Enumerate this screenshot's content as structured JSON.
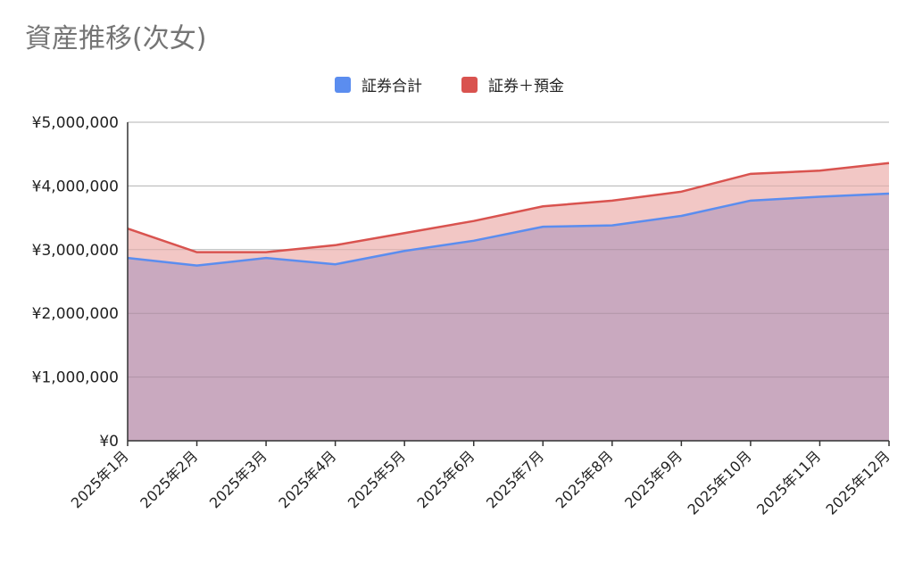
{
  "title": "資産推移(次女)",
  "legend": {
    "series0": "証券合計",
    "series1": "証券＋預金"
  },
  "colors": {
    "series0": "#5b8def",
    "series1": "#d9534f",
    "fill0": "#c9a9bf",
    "fill1": "#f2c7c5"
  },
  "chart_data": {
    "type": "area",
    "title": "資産推移(次女)",
    "xlabel": "",
    "ylabel": "",
    "ylim": [
      0,
      5000000
    ],
    "yticks": [
      0,
      1000000,
      2000000,
      3000000,
      4000000,
      5000000
    ],
    "ytick_labels": [
      "¥0",
      "¥1,000,000",
      "¥2,000,000",
      "¥3,000,000",
      "¥4,000,000",
      "¥5,000,000"
    ],
    "categories": [
      "2025年1月",
      "2025年2月",
      "2025年3月",
      "2025年4月",
      "2025年5月",
      "2025年6月",
      "2025年7月",
      "2025年8月",
      "2025年9月",
      "2025年10月",
      "2025年11月",
      "2025年12月"
    ],
    "legend_position": "top",
    "grid": true,
    "series": [
      {
        "name": "証券合計",
        "values": [
          2870000,
          2750000,
          2870000,
          2770000,
          2980000,
          3140000,
          3360000,
          3380000,
          3530000,
          3770000,
          3830000,
          3880000
        ]
      },
      {
        "name": "証券＋預金",
        "values": [
          3330000,
          2960000,
          2960000,
          3070000,
          3260000,
          3450000,
          3680000,
          3770000,
          3910000,
          4190000,
          4240000,
          4360000
        ]
      }
    ]
  }
}
